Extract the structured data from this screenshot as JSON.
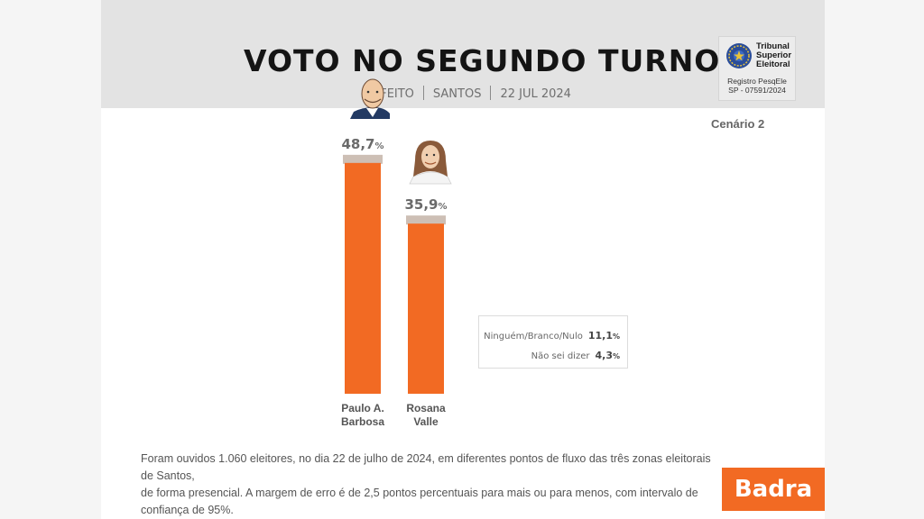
{
  "header": {
    "title": "VOTO NO SEGUNDO TURNO",
    "subtitle_parts": [
      "EFEITO",
      "SANTOS",
      "22 JUL 2024"
    ]
  },
  "badge": {
    "name_lines": [
      "Tribunal",
      "Superior",
      "Eleitoral"
    ],
    "registry_lines": [
      "Registro PesqEle",
      "SP - 07591/2024"
    ]
  },
  "scenario": "Cenário 2",
  "colors": {
    "bar": "#f26a23",
    "bar_cap": "#c8b8ad",
    "brand": "#f26a23"
  },
  "chart_data": {
    "type": "bar",
    "categories": [
      [
        "Paulo A.",
        "Barbosa"
      ],
      [
        "Rosana",
        "Valle"
      ]
    ],
    "values": [
      48.7,
      35.9
    ],
    "value_labels": [
      "48,7",
      "35,9"
    ],
    "unit": "%",
    "ylim": [
      0,
      50
    ],
    "title": "",
    "xlabel": "",
    "ylabel": ""
  },
  "others": [
    {
      "label": "Ninguém/Branco/Nulo",
      "value": "11,1",
      "unit": "%"
    },
    {
      "label": "Não sei dizer",
      "value": "4,3",
      "unit": "%"
    }
  ],
  "footnote": [
    "Foram ouvidos 1.060 eleitores, no dia 22 de julho de 2024, em diferentes pontos de fluxo das três zonas eleitorais de Santos,",
    "de forma presencial. A margem de erro é de 2,5 pontos percentuais para mais ou para menos, com intervalo de confiança de 95%."
  ],
  "logo": "Badra"
}
